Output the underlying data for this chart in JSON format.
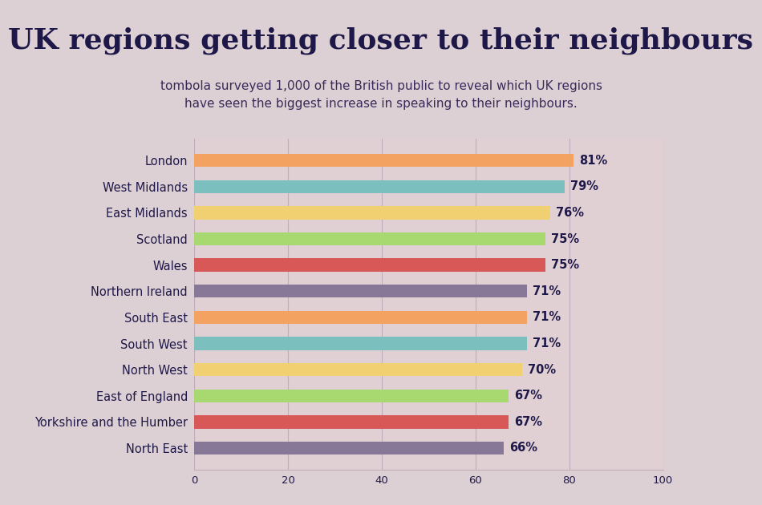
{
  "title": "UK regions getting closer to their neighbours",
  "subtitle": "tombola surveyed 1,000 of the British public to reveal which UK regions\nhave seen the biggest increase in speaking to their neighbours.",
  "categories": [
    "London",
    "West Midlands",
    "East Midlands",
    "Scotland",
    "Wales",
    "Northern Ireland",
    "South East",
    "South West",
    "North West",
    "East of England",
    "Yorkshire and the Humber",
    "North East"
  ],
  "values": [
    81,
    79,
    76,
    75,
    75,
    71,
    71,
    71,
    70,
    67,
    67,
    66
  ],
  "bar_colors": [
    "#F4A261",
    "#7BBFBF",
    "#F0D070",
    "#A8D870",
    "#D85858",
    "#887898",
    "#F4A261",
    "#7BBFBF",
    "#F0D070",
    "#A8D870",
    "#D85858",
    "#887898"
  ],
  "background_color": "#DDD0D4",
  "header_bg_color": "#B8D8E8",
  "chart_bg_color": "#E0D0D4",
  "title_color": "#1E1848",
  "subtitle_color": "#3A2A5A",
  "label_color": "#1E1848",
  "value_color": "#1E1848",
  "grid_color": "#C0ACBA",
  "xlim": [
    0,
    100
  ],
  "xticks": [
    0,
    20,
    40,
    60,
    80,
    100
  ],
  "bar_height": 0.5,
  "title_fontsize": 26,
  "subtitle_fontsize": 11,
  "label_fontsize": 10.5,
  "value_fontsize": 10.5
}
